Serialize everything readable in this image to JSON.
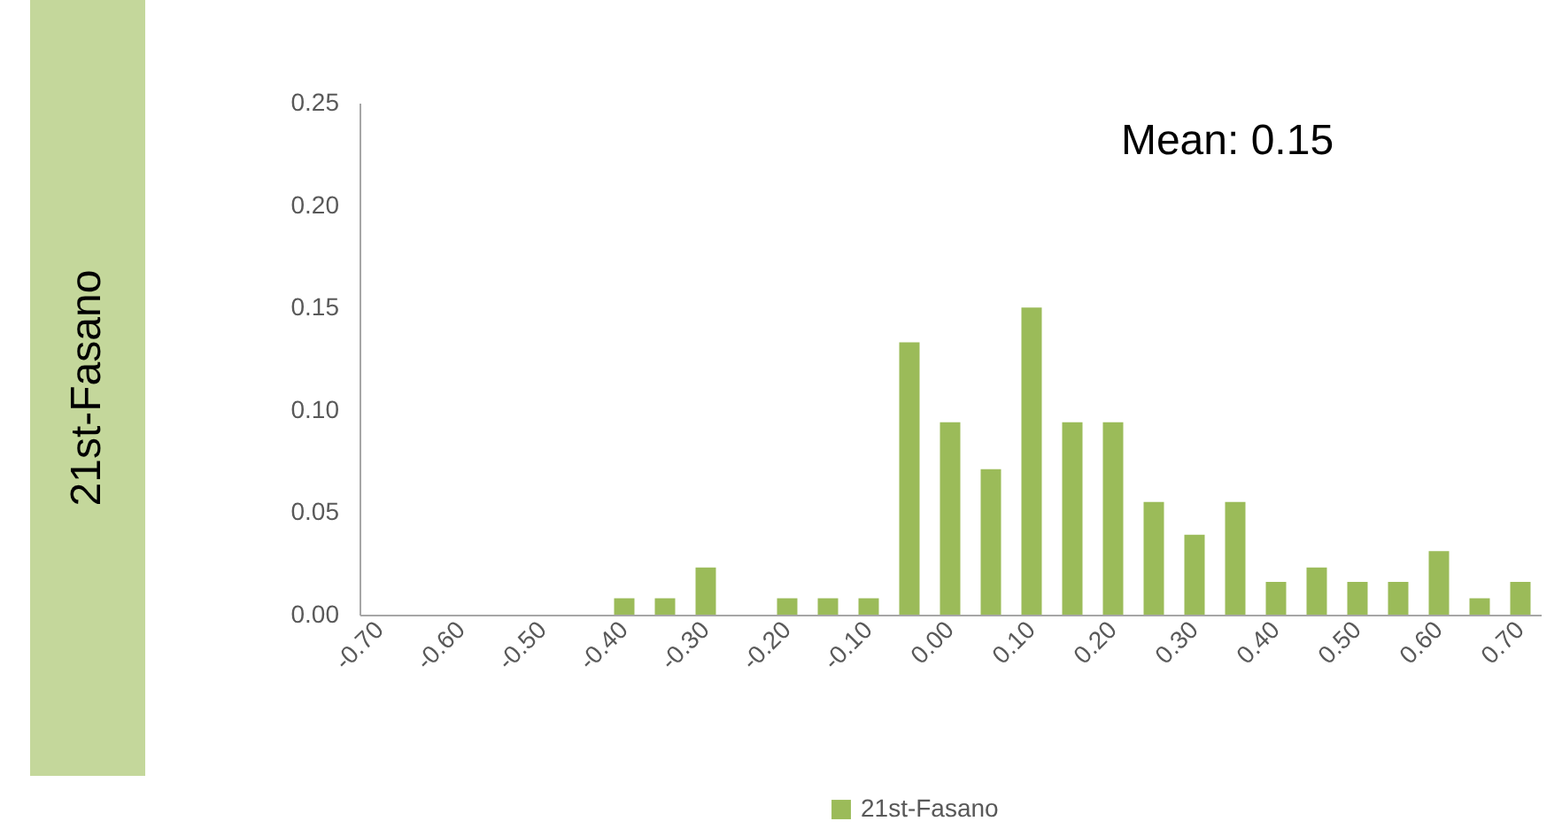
{
  "chart_data": {
    "type": "bar",
    "ylabel": "21st-Fasano",
    "annotations": [
      "Mean: 0.15"
    ],
    "categories": [
      "-0.70",
      null,
      "-0.60",
      null,
      "-0.50",
      null,
      "-0.40",
      null,
      "-0.30",
      null,
      "-0.20",
      null,
      "-0.10",
      null,
      "0.00",
      null,
      "0.10",
      null,
      "0.20",
      null,
      "0.30",
      null,
      "0.40",
      null,
      "0.50",
      null,
      "0.60",
      null,
      "0.70"
    ],
    "series": [
      {
        "name": "21st-Fasano",
        "color": "#9bbb59",
        "values": [
          0,
          0,
          0,
          0,
          0,
          0,
          0.008,
          0.008,
          0.023,
          0,
          0.008,
          0.008,
          0.008,
          0.133,
          0.094,
          0.071,
          0.15,
          0.094,
          0.094,
          0.055,
          0.039,
          0.055,
          0.016,
          0.023,
          0.016,
          0.016,
          0.031,
          0.008,
          0.016
        ]
      }
    ],
    "ylim": [
      0,
      0.25
    ],
    "yticks": [
      {
        "value": 0,
        "label": "0.00"
      },
      {
        "value": 0.05,
        "label": "0.05"
      },
      {
        "value": 0.1,
        "label": "0.10"
      },
      {
        "value": 0.15,
        "label": "0.15"
      },
      {
        "value": 0.2,
        "label": "0.20"
      },
      {
        "value": 0.25,
        "label": "0.25"
      }
    ],
    "legend": "bottom"
  }
}
